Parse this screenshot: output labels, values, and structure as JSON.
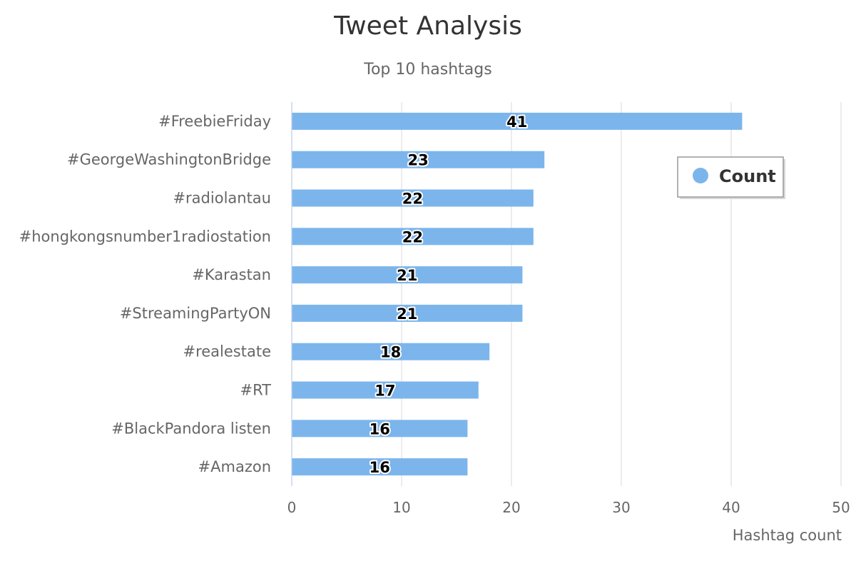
{
  "chart_data": {
    "type": "bar",
    "orientation": "horizontal",
    "title": "Tweet Analysis",
    "subtitle": "Top 10 hashtags",
    "categories": [
      "#FreebieFriday",
      "#GeorgeWashingtonBridge",
      "#radiolantau",
      "#hongkongsnumber1radiostation",
      "#Karastan",
      "#StreamingPartyON",
      "#realestate",
      "#RT",
      "#BlackPandora listen",
      "#Amazon"
    ],
    "series": [
      {
        "name": "Count",
        "values": [
          41,
          23,
          22,
          22,
          21,
          21,
          18,
          17,
          16,
          16
        ],
        "color": "#7cb5ec"
      }
    ],
    "xlabel": "Hashtag count",
    "ylabel": "",
    "xlim": [
      0,
      50
    ],
    "ticks": [
      0,
      10,
      20,
      30,
      40,
      50
    ],
    "grid": true,
    "data_labels": true,
    "legend": "top-right"
  }
}
